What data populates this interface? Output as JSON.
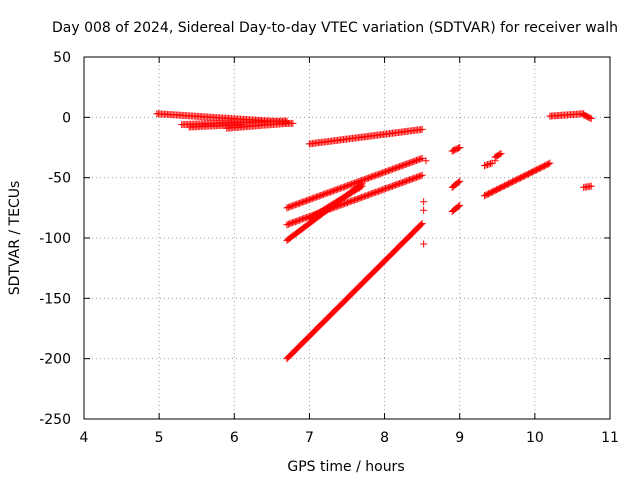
{
  "chart_data": {
    "type": "scatter",
    "title": "Day 008 of 2024, Sidereal Day-to-day VTEC variation (SDTVAR) for receiver walh",
    "xlabel": "GPS time / hours",
    "ylabel": "SDTVAR / TECUs",
    "xlim": [
      4,
      11
    ],
    "ylim": [
      -250,
      50
    ],
    "xticks": [
      4,
      5,
      6,
      7,
      8,
      9,
      10,
      11
    ],
    "yticks": [
      -250,
      -200,
      -150,
      -100,
      -50,
      0,
      50
    ],
    "grid": true,
    "marker": "+",
    "color": "#ff0000",
    "segments": [
      {
        "x0": 4.97,
        "y0": 3,
        "x1": 6.7,
        "y1": -4
      },
      {
        "x0": 5.3,
        "y0": -6,
        "x1": 6.7,
        "y1": -3
      },
      {
        "x0": 5.9,
        "y0": -9,
        "x1": 6.7,
        "y1": -5
      },
      {
        "x0": 5.4,
        "y0": -8,
        "x1": 6.1,
        "y1": -6
      },
      {
        "x0": 6.7,
        "y0": -5,
        "x1": 6.78,
        "y1": -5
      },
      {
        "x0": 7.0,
        "y0": -22,
        "x1": 8.5,
        "y1": -10
      },
      {
        "x0": 6.7,
        "y0": -75,
        "x1": 8.5,
        "y1": -34
      },
      {
        "x0": 6.7,
        "y0": -102,
        "x1": 7.7,
        "y1": -55
      },
      {
        "x0": 6.7,
        "y0": -89,
        "x1": 8.5,
        "y1": -48
      },
      {
        "x0": 7.0,
        "y0": -84,
        "x1": 7.7,
        "y1": -57
      },
      {
        "x0": 6.7,
        "y0": -200,
        "x1": 8.5,
        "y1": -88
      },
      {
        "x0": 8.9,
        "y0": -28,
        "x1": 9.0,
        "y1": -25
      },
      {
        "x0": 8.9,
        "y0": -58,
        "x1": 9.0,
        "y1": -53
      },
      {
        "x0": 8.9,
        "y0": -78,
        "x1": 9.0,
        "y1": -73
      },
      {
        "x0": 9.33,
        "y0": -40,
        "x1": 9.43,
        "y1": -38
      },
      {
        "x0": 9.47,
        "y0": -33,
        "x1": 9.55,
        "y1": -30
      },
      {
        "x0": 9.33,
        "y0": -65,
        "x1": 10.2,
        "y1": -38
      },
      {
        "x0": 10.2,
        "y0": 1,
        "x1": 10.65,
        "y1": 3
      },
      {
        "x0": 10.65,
        "y0": 2,
        "x1": 10.75,
        "y1": -1
      },
      {
        "x0": 10.65,
        "y0": -58,
        "x1": 10.75,
        "y1": -57
      }
    ],
    "points": [
      {
        "x": 8.55,
        "y": -36
      },
      {
        "x": 8.52,
        "y": -70
      },
      {
        "x": 8.52,
        "y": -77
      },
      {
        "x": 8.52,
        "y": -105
      },
      {
        "x": 9.47,
        "y": -36
      }
    ]
  }
}
